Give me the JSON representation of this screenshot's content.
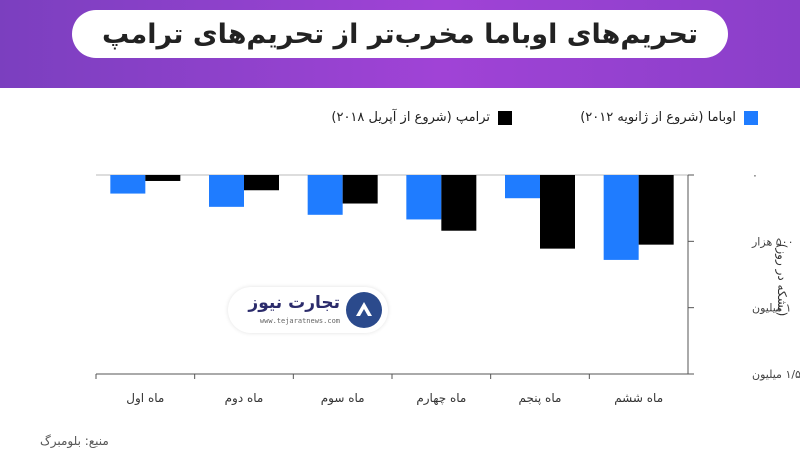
{
  "title": "تحریم‌های اوباما مخرب‌تر از تحریم‌های ترامپ",
  "source": "منبع: بلومبرگ",
  "logo": {
    "name": "تجارت نیوز",
    "url": "www.tejaratnews.com"
  },
  "colors": {
    "obama": "#1f7cff",
    "trump": "#000000",
    "header": "#9b43d3"
  },
  "chart_data": {
    "type": "bar",
    "categories": [
      "ماه اول",
      "ماه دوم",
      "ماه سوم",
      "ماه چهارم",
      "ماه پنجم",
      "ماه ششم"
    ],
    "series": [
      {
        "name": "اوباما (شروع از ژانویه ۲۰۱۲)",
        "color": "#1f7cff",
        "values": [
          -140000,
          -240000,
          -300000,
          -335000,
          -175000,
          -640000
        ]
      },
      {
        "name": "ترامپ (شروع از آپریل ۲۰۱۸)",
        "color": "#000000",
        "values": [
          -45000,
          -115000,
          -215000,
          -420000,
          -555000,
          -525000
        ]
      }
    ],
    "yticks": [
      {
        "value": 0,
        "label": "۰"
      },
      {
        "value": -500000,
        "label": "۵۰۰ هزار"
      },
      {
        "value": -1000000,
        "label": "۱ میلیون"
      },
      {
        "value": -1500000,
        "label": "۱/۵ میلیون"
      }
    ],
    "ylabel": "(بشکه در روز)",
    "ylim": [
      -1500000,
      0
    ],
    "legend_position": "top"
  }
}
